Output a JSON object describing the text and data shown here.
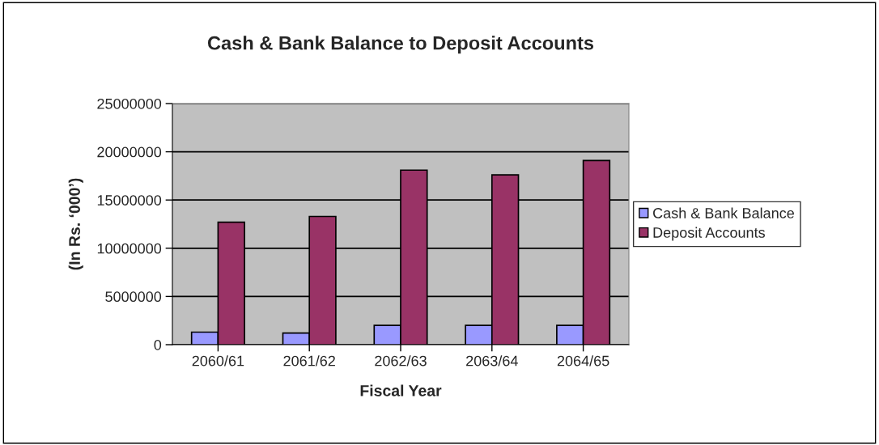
{
  "chart_data": {
    "type": "bar",
    "title": "Cash & Bank Balance to Deposit Accounts",
    "xlabel": "Fiscal Year",
    "ylabel": "(In Rs. ‘000’)",
    "categories": [
      "2060/61",
      "2061/62",
      "2062/63",
      "2063/64",
      "2064/65"
    ],
    "series": [
      {
        "name": "Cash & Bank Balance",
        "color": "#9999ff",
        "values": [
          1300000,
          1200000,
          2000000,
          2000000,
          2000000
        ]
      },
      {
        "name": "Deposit Accounts",
        "color": "#993366",
        "values": [
          12700000,
          13300000,
          18100000,
          17600000,
          19100000
        ]
      }
    ],
    "ylim": [
      0,
      25000000
    ],
    "yticks": [
      0,
      5000000,
      10000000,
      15000000,
      20000000,
      25000000
    ],
    "grid": "y",
    "legend": "right"
  }
}
